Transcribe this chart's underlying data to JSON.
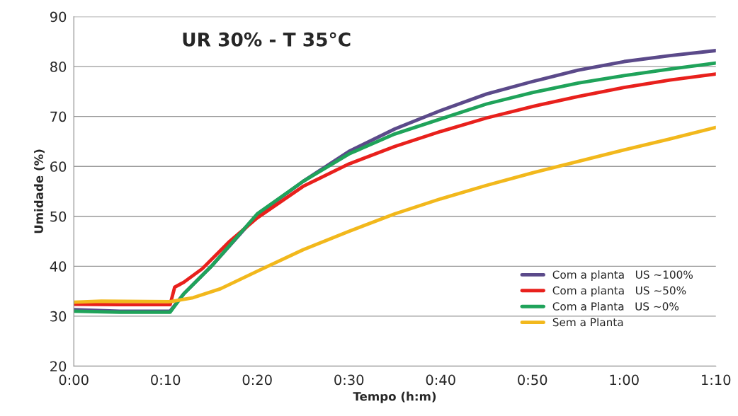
{
  "chart_data": {
    "type": "line",
    "title": "UR 30% - T 35°C",
    "xlabel": "Tempo (h:m)",
    "ylabel": "Umidade (%)",
    "xlim": [
      0,
      70
    ],
    "xticks": [
      {
        "value": 0,
        "label": "0:00"
      },
      {
        "value": 10,
        "label": "0:10"
      },
      {
        "value": 20,
        "label": "0:20"
      },
      {
        "value": 30,
        "label": "0:30"
      },
      {
        "value": 40,
        "label": "0:40"
      },
      {
        "value": 50,
        "label": "0:50"
      },
      {
        "value": 60,
        "label": "1:00"
      },
      {
        "value": 70,
        "label": "1:10"
      }
    ],
    "ylim": [
      20,
      90
    ],
    "yticks": [
      20,
      30,
      40,
      50,
      60,
      70,
      80,
      90
    ],
    "grid": "y",
    "legend": "lower right",
    "marker": "none",
    "line_style": "solid",
    "series": [
      {
        "name": "Com a planta   US ~100%",
        "color": "#5b4a8a",
        "x": [
          0,
          5,
          10.5,
          12,
          15,
          20,
          25,
          30,
          35,
          40,
          45,
          50,
          55,
          60,
          65,
          70
        ],
        "values": [
          31.3,
          31.0,
          31.0,
          34.5,
          40,
          50.3,
          57,
          63,
          67.5,
          71.2,
          74.5,
          77,
          79.3,
          81,
          82.2,
          83.2
        ]
      },
      {
        "name": "Com a planta   US ~50%",
        "color": "#e8201c",
        "x": [
          0,
          5,
          10.5,
          11,
          12,
          14,
          17,
          20,
          25,
          30,
          35,
          40,
          45,
          50,
          55,
          60,
          65,
          70
        ],
        "values": [
          32.4,
          32.3,
          32.3,
          35.8,
          36.8,
          39.5,
          45,
          49.7,
          56,
          60.5,
          64,
          67,
          69.7,
          72,
          74,
          75.8,
          77.3,
          78.5
        ]
      },
      {
        "name": "Com a Planta   US ~0%",
        "color": "#1fa35a",
        "x": [
          0,
          5,
          10.5,
          12,
          15,
          20,
          25,
          30,
          35,
          40,
          45,
          50,
          55,
          60,
          65,
          70
        ],
        "values": [
          31.0,
          30.8,
          30.8,
          34.5,
          40,
          50.5,
          57,
          62.5,
          66.5,
          69.5,
          72.5,
          74.8,
          76.7,
          78.2,
          79.5,
          80.7
        ]
      },
      {
        "name": "Sem a Planta",
        "color": "#f2b81c",
        "x": [
          0,
          3,
          10.5,
          13,
          16,
          20,
          25,
          30,
          35,
          40,
          45,
          50,
          55,
          60,
          65,
          70
        ],
        "values": [
          32.8,
          33.0,
          32.9,
          33.7,
          35.5,
          39,
          43.3,
          47,
          50.5,
          53.5,
          56.2,
          58.7,
          61,
          63.3,
          65.5,
          67.8
        ]
      }
    ]
  }
}
